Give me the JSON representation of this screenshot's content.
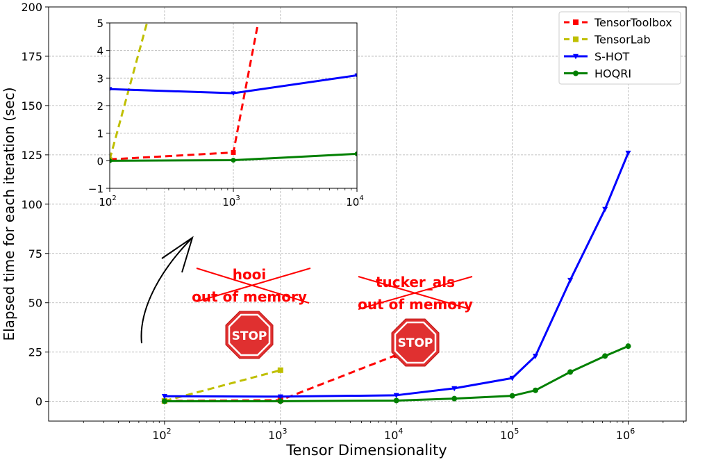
{
  "chart_data": [
    {
      "type": "line",
      "xscale": "log",
      "xlim": [
        10,
        3162278
      ],
      "ylim": [
        -10,
        200
      ],
      "xlabel": "Tensor Dimensionality",
      "ylabel": "Elapsed time for each iteration (sec)",
      "yticks": [
        "0",
        "25",
        "50",
        "75",
        "100",
        "125",
        "150",
        "175",
        "200"
      ],
      "xticks": [
        {
          "base": "10",
          "exp": "2"
        },
        {
          "base": "10",
          "exp": "3"
        },
        {
          "base": "10",
          "exp": "4"
        },
        {
          "base": "10",
          "exp": "5"
        },
        {
          "base": "10",
          "exp": "6"
        }
      ],
      "grid": true,
      "legend_position": "top-right",
      "series": [
        {
          "name": "TensorToolbox",
          "color": "#ff0000",
          "dash": true,
          "marker": "square",
          "x": [
            100,
            1000,
            10000
          ],
          "y": [
            0.2,
            0.6,
            23.5
          ]
        },
        {
          "name": "TensorLab",
          "color": "#bfbf00",
          "dash": true,
          "marker": "square",
          "x": [
            100,
            1000
          ],
          "y": [
            0.2,
            15.8
          ]
        },
        {
          "name": "S-HOT",
          "color": "#0000ff",
          "dash": false,
          "marker": "triangle-down",
          "x": [
            100,
            1000,
            10000,
            31623,
            100000,
            158489,
            316228,
            630957,
            1000000
          ],
          "y": [
            2.6,
            2.4,
            3.1,
            6.6,
            11.8,
            23,
            61.5,
            97.5,
            126
          ]
        },
        {
          "name": "HOQRI",
          "color": "#008000",
          "dash": false,
          "marker": "circle",
          "x": [
            100,
            1000,
            10000,
            31623,
            100000,
            158489,
            316228,
            630957,
            1000000
          ],
          "y": [
            0.05,
            0.1,
            0.4,
            1.4,
            2.8,
            5.6,
            14.9,
            23,
            28
          ]
        }
      ]
    },
    {
      "type": "line",
      "xscale": "log",
      "xlim": [
        100,
        10000
      ],
      "ylim": [
        -1,
        5
      ],
      "yticks": [
        "−1",
        "0",
        "1",
        "2",
        "3",
        "4",
        "5"
      ],
      "xticks": [
        {
          "base": "10",
          "exp": "2"
        },
        {
          "base": "10",
          "exp": "3"
        },
        {
          "base": "10",
          "exp": "4"
        }
      ],
      "series": [
        {
          "name": "TensorToolbox",
          "x": [
            100,
            1000,
            1585
          ],
          "y": [
            0.05,
            0.3,
            5
          ]
        },
        {
          "name": "TensorLab",
          "x": [
            100,
            200
          ],
          "y": [
            0.05,
            5
          ]
        },
        {
          "name": "S-HOT",
          "x": [
            100,
            1000,
            10000
          ],
          "y": [
            2.6,
            2.45,
            3.1
          ]
        },
        {
          "name": "HOQRI",
          "x": [
            100,
            1000,
            10000
          ],
          "y": [
            0.0,
            0.02,
            0.25
          ]
        }
      ]
    }
  ],
  "annotations": {
    "hooi_line1": "hooi",
    "hooi_line2": "out of memory",
    "tucker_line1": "tucker_als",
    "tucker_line2": "out of memory",
    "stop_label": "STOP"
  }
}
